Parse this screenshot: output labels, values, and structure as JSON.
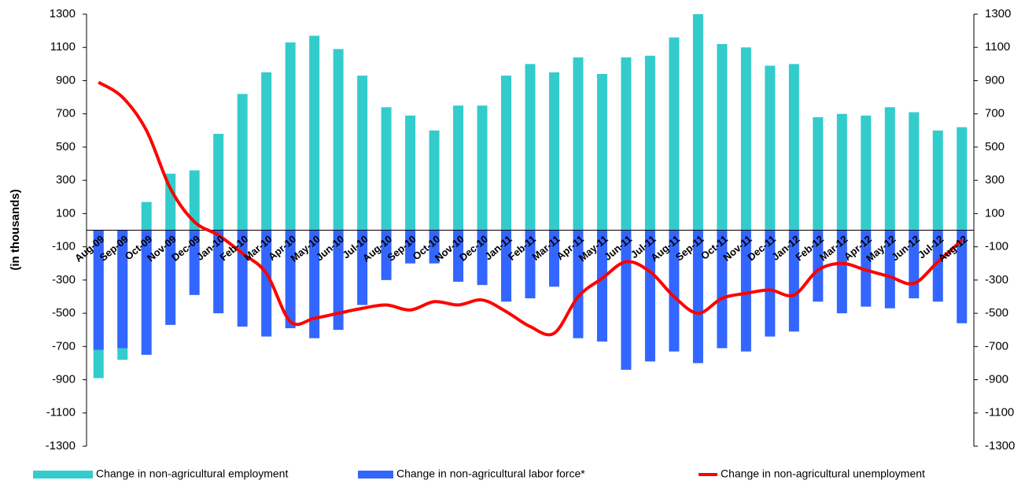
{
  "chart_data": {
    "type": "bar",
    "y_label": "(in thousands)",
    "categories": [
      "Aug-09",
      "Sep-09",
      "Oct-09",
      "Nov-09",
      "Dec-09",
      "Jan-10",
      "Feb-10",
      "Mar-10",
      "Apr-10",
      "May-10",
      "Jun-10",
      "Jul-10",
      "Aug-10",
      "Sep-10",
      "Oct-10",
      "Nov-10",
      "Dec-10",
      "Jan-11",
      "Feb-11",
      "Mar-11",
      "Apr-11",
      "May-11",
      "Jun-11",
      "Jul-11",
      "Aug-11",
      "Sep-11",
      "Oct-11",
      "Nov-11",
      "Dec-11",
      "Jan-12",
      "Feb-12",
      "Mar-12",
      "Apr-12",
      "May-12",
      "Jun-12",
      "Jul-12",
      "Aug-12"
    ],
    "series": [
      {
        "name": "Change in non-agricultural employment",
        "color": "#33cccc",
        "type": "bar",
        "values": [
          -890,
          -780,
          170,
          340,
          360,
          580,
          820,
          950,
          1130,
          1170,
          1090,
          930,
          740,
          690,
          600,
          750,
          750,
          930,
          1000,
          950,
          1040,
          940,
          1040,
          1050,
          1160,
          1300,
          1120,
          1100,
          990,
          1000,
          680,
          700,
          690,
          740,
          710,
          600,
          620
        ]
      },
      {
        "name": "Change in non-agricultural labor force*",
        "color": "#3366ff",
        "type": "bar",
        "values": [
          -720,
          -710,
          -750,
          -570,
          -390,
          -500,
          -580,
          -640,
          -590,
          -650,
          -600,
          -450,
          -300,
          -200,
          -200,
          -310,
          -330,
          -430,
          -410,
          -340,
          -650,
          -670,
          -840,
          -790,
          -730,
          -800,
          -710,
          -730,
          -640,
          -610,
          -430,
          -500,
          -460,
          -470,
          -410,
          -430,
          -560
        ]
      },
      {
        "name": "Change in non-agricultural unemployment",
        "color": "#ff0000",
        "type": "line",
        "values": [
          890,
          800,
          600,
          250,
          50,
          -30,
          -140,
          -260,
          -550,
          -530,
          -500,
          -470,
          -450,
          -480,
          -430,
          -450,
          -420,
          -490,
          -580,
          -620,
          -400,
          -290,
          -190,
          -250,
          -400,
          -500,
          -410,
          -380,
          -360,
          -390,
          -240,
          -200,
          -240,
          -280,
          -320,
          -190,
          -60
        ]
      }
    ],
    "ylim": [
      -1300,
      1300
    ],
    "yticks": [
      -1300,
      -1100,
      -900,
      -700,
      -500,
      -300,
      -100,
      100,
      300,
      500,
      700,
      900,
      1100,
      1300
    ],
    "y2lim": [
      -1300,
      1300
    ],
    "y2ticks": [
      -1300,
      -1100,
      -900,
      -700,
      -500,
      -300,
      -100,
      100,
      300,
      500,
      700,
      900,
      1100,
      1300
    ],
    "grid": false
  }
}
